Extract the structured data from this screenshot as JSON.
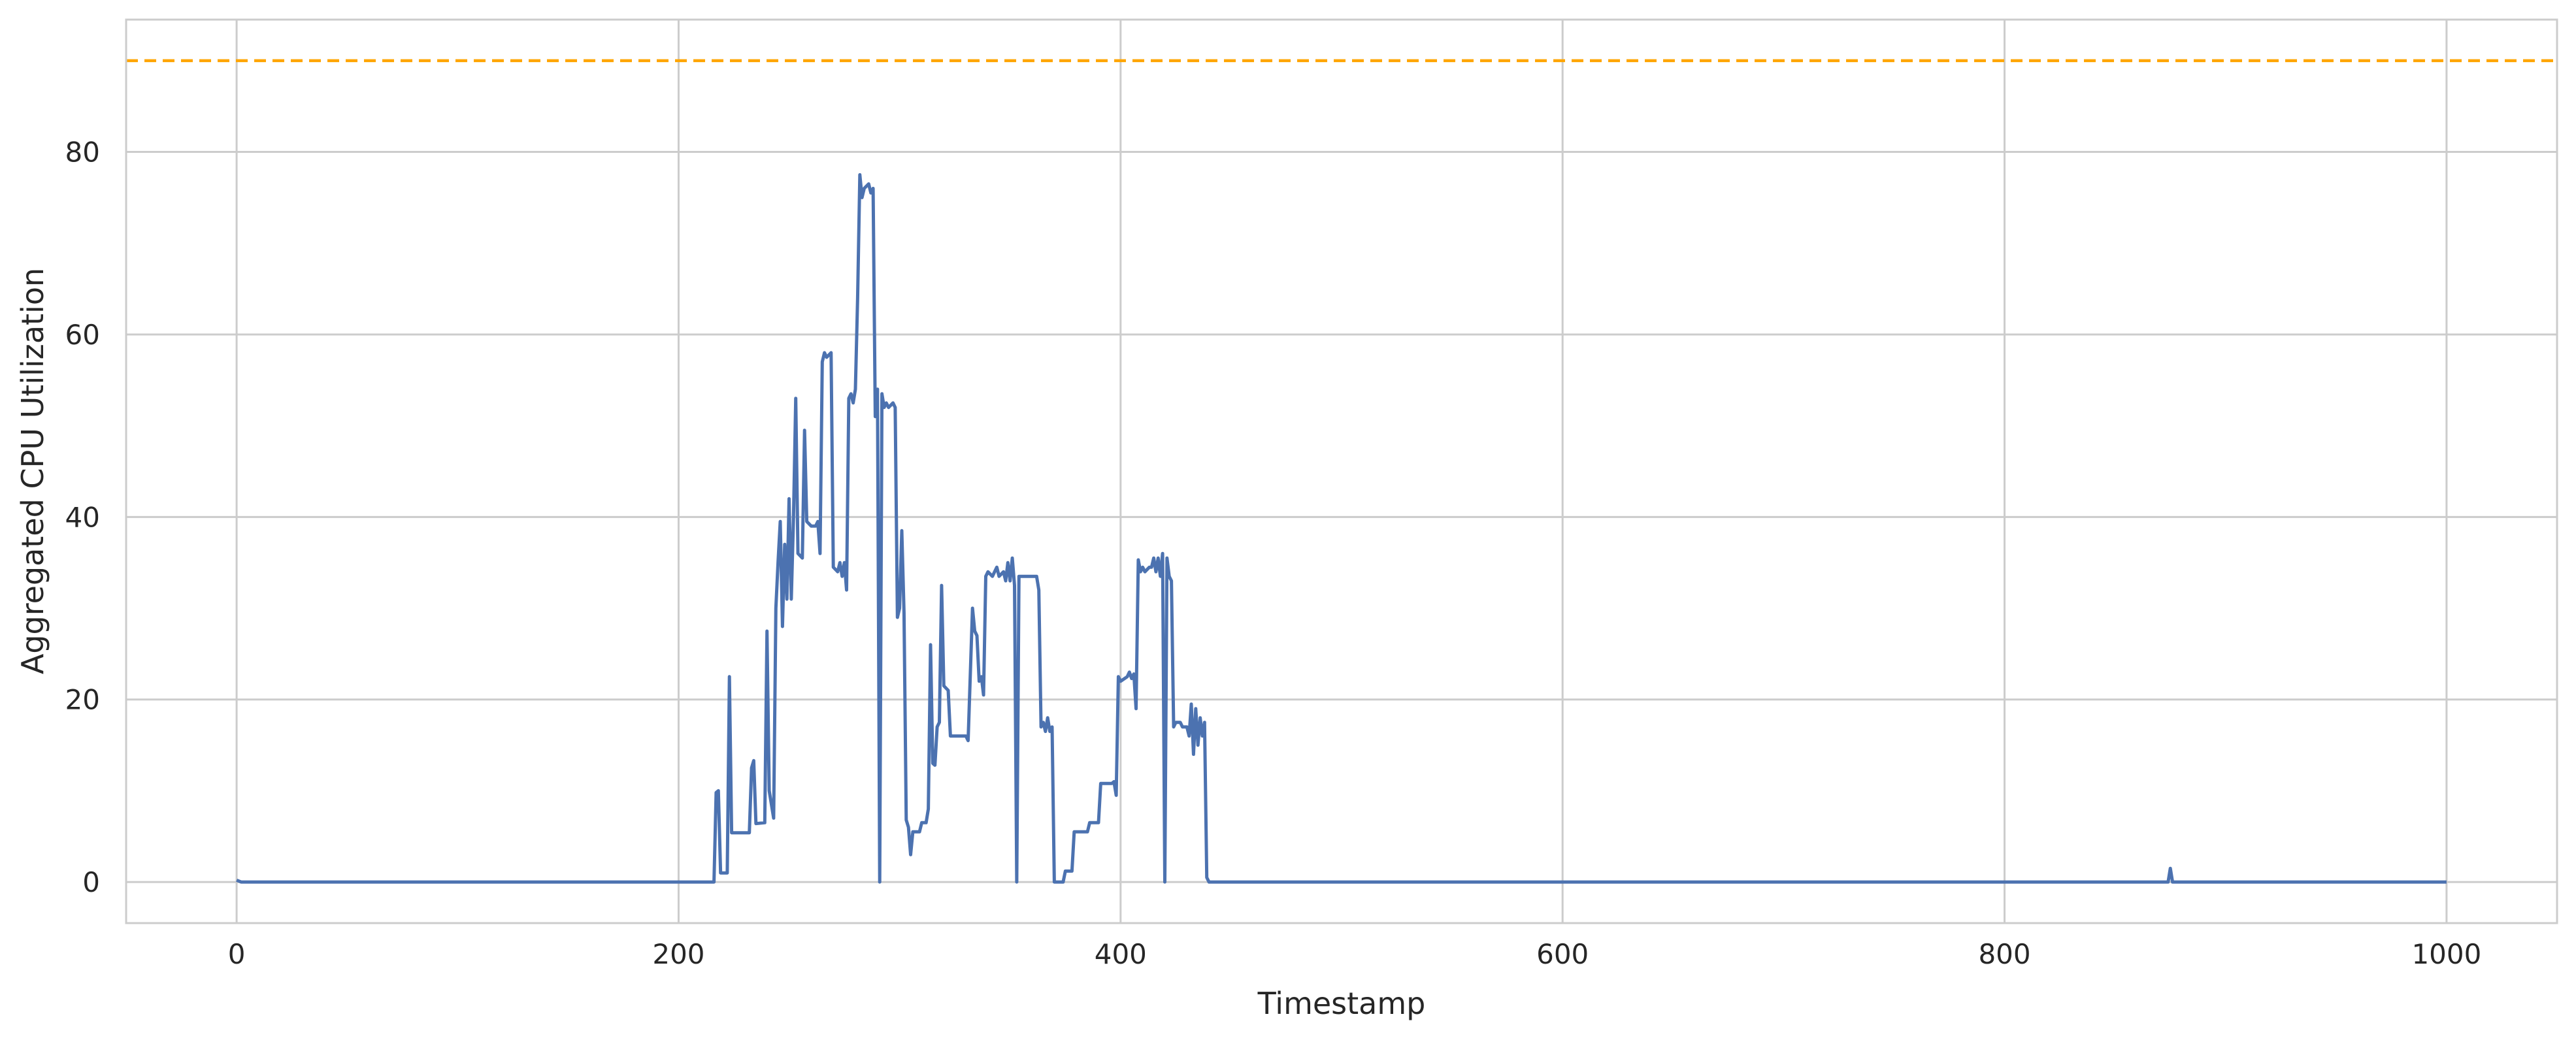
{
  "chart_data": {
    "type": "line",
    "title": "",
    "xlabel": "Timestamp",
    "ylabel": "Aggregated CPU Utilization",
    "xlim": [
      -50,
      1050
    ],
    "ylim": [
      -4.5,
      94.5
    ],
    "xticks": [
      0,
      200,
      400,
      600,
      800,
      1000
    ],
    "yticks": [
      0,
      20,
      40,
      60,
      80
    ],
    "xtick_labels": [
      "0",
      "200",
      "400",
      "600",
      "800",
      "1000"
    ],
    "ytick_labels": [
      "0",
      "20",
      "40",
      "60",
      "80"
    ],
    "grid": true,
    "legend": "none",
    "threshold": {
      "value": 90,
      "color": "#ffa500",
      "style": "dashed"
    },
    "series": [
      {
        "color": "#4c72b0",
        "points": [
          [
            0,
            0.2
          ],
          [
            1,
            0.1
          ],
          [
            2,
            0
          ],
          [
            100,
            0
          ],
          [
            216,
            0
          ],
          [
            217,
            9.8
          ],
          [
            218,
            10
          ],
          [
            219,
            1
          ],
          [
            222,
            1
          ],
          [
            223,
            22.5
          ],
          [
            224,
            5.4
          ],
          [
            232,
            5.4
          ],
          [
            233,
            12.5
          ],
          [
            234,
            13.3
          ],
          [
            235,
            6.4
          ],
          [
            239,
            6.5
          ],
          [
            240,
            27.5
          ],
          [
            241,
            10
          ],
          [
            243,
            7
          ],
          [
            244,
            30
          ],
          [
            245,
            35
          ],
          [
            246,
            39.5
          ],
          [
            247,
            28
          ],
          [
            248,
            37
          ],
          [
            249,
            31
          ],
          [
            250,
            42
          ],
          [
            251,
            31
          ],
          [
            252,
            40
          ],
          [
            253,
            53
          ],
          [
            254,
            36
          ],
          [
            256,
            35.5
          ],
          [
            257,
            49.5
          ],
          [
            258,
            39.5
          ],
          [
            260,
            39
          ],
          [
            262,
            39
          ],
          [
            263,
            39.5
          ],
          [
            264,
            36
          ],
          [
            265,
            57
          ],
          [
            266,
            58
          ],
          [
            267,
            57.5
          ],
          [
            269,
            58
          ],
          [
            270,
            34.5
          ],
          [
            272,
            34
          ],
          [
            273,
            35
          ],
          [
            274,
            33.5
          ],
          [
            275,
            35
          ],
          [
            276,
            32
          ],
          [
            277,
            53
          ],
          [
            278,
            53.5
          ],
          [
            279,
            52.5
          ],
          [
            280,
            54
          ],
          [
            281,
            64
          ],
          [
            282,
            77.5
          ],
          [
            283,
            75
          ],
          [
            284,
            76
          ],
          [
            286,
            76.5
          ],
          [
            287,
            75.5
          ],
          [
            288,
            76
          ],
          [
            289,
            51
          ],
          [
            290,
            54
          ],
          [
            291,
            0
          ],
          [
            292,
            53.5
          ],
          [
            293,
            52
          ],
          [
            294,
            52.5
          ],
          [
            295,
            52
          ],
          [
            297,
            52.5
          ],
          [
            298,
            52
          ],
          [
            299,
            29
          ],
          [
            300,
            30
          ],
          [
            301,
            38.5
          ],
          [
            302,
            29.5
          ],
          [
            303,
            6.8
          ],
          [
            304,
            6
          ],
          [
            305,
            3
          ],
          [
            306,
            5.5
          ],
          [
            309,
            5.5
          ],
          [
            310,
            6.5
          ],
          [
            312,
            6.5
          ],
          [
            313,
            8
          ],
          [
            314,
            26
          ],
          [
            315,
            13
          ],
          [
            316,
            12.8
          ],
          [
            317,
            17
          ],
          [
            318,
            17.5
          ],
          [
            319,
            32.5
          ],
          [
            320,
            21.5
          ],
          [
            322,
            21
          ],
          [
            323,
            16
          ],
          [
            330,
            16
          ],
          [
            331,
            15.5
          ],
          [
            333,
            30
          ],
          [
            334,
            27.5
          ],
          [
            335,
            27
          ],
          [
            336,
            22
          ],
          [
            337,
            22.5
          ],
          [
            338,
            20.5
          ],
          [
            339,
            33.5
          ],
          [
            340,
            34
          ],
          [
            342,
            33.5
          ],
          [
            344,
            34.5
          ],
          [
            345,
            33.5
          ],
          [
            347,
            34
          ],
          [
            348,
            33
          ],
          [
            349,
            35
          ],
          [
            350,
            33
          ],
          [
            351,
            35.5
          ],
          [
            352,
            32.5
          ],
          [
            353,
            0
          ],
          [
            354,
            33.5
          ],
          [
            356,
            33.5
          ],
          [
            362,
            33.5
          ],
          [
            363,
            32
          ],
          [
            364,
            17
          ],
          [
            365,
            17.5
          ],
          [
            366,
            16.5
          ],
          [
            367,
            18
          ],
          [
            368,
            16.5
          ],
          [
            369,
            17
          ],
          [
            370,
            0
          ],
          [
            374,
            0
          ],
          [
            375,
            1.2
          ],
          [
            378,
            1.2
          ],
          [
            379,
            5.5
          ],
          [
            385,
            5.5
          ],
          [
            386,
            6.5
          ],
          [
            390,
            6.5
          ],
          [
            391,
            10.8
          ],
          [
            396,
            10.8
          ],
          [
            397,
            11
          ],
          [
            398,
            9.5
          ],
          [
            399,
            22.5
          ],
          [
            400,
            22
          ],
          [
            403,
            22.5
          ],
          [
            404,
            23
          ],
          [
            405,
            22.3
          ],
          [
            406,
            22.8
          ],
          [
            407,
            19
          ],
          [
            408,
            35.3
          ],
          [
            409,
            34
          ],
          [
            410,
            34.5
          ],
          [
            411,
            34
          ],
          [
            413,
            34.5
          ],
          [
            414,
            34.5
          ],
          [
            415,
            35.5
          ],
          [
            416,
            34
          ],
          [
            417,
            35.5
          ],
          [
            418,
            33.5
          ],
          [
            419,
            36
          ],
          [
            420,
            0
          ],
          [
            421,
            35.5
          ],
          [
            422,
            33.5
          ],
          [
            423,
            33
          ],
          [
            424,
            17
          ],
          [
            425,
            17.5
          ],
          [
            427,
            17.5
          ],
          [
            428,
            17
          ],
          [
            430,
            17
          ],
          [
            431,
            16
          ],
          [
            432,
            19.5
          ],
          [
            433,
            14
          ],
          [
            434,
            19
          ],
          [
            435,
            15
          ],
          [
            436,
            18
          ],
          [
            437,
            16
          ],
          [
            438,
            17.5
          ],
          [
            439,
            0.5
          ],
          [
            440,
            0
          ],
          [
            500,
            0
          ],
          [
            700,
            0
          ],
          [
            874,
            0
          ],
          [
            875,
            1.5
          ],
          [
            876,
            0
          ],
          [
            1000,
            0
          ]
        ]
      }
    ]
  }
}
